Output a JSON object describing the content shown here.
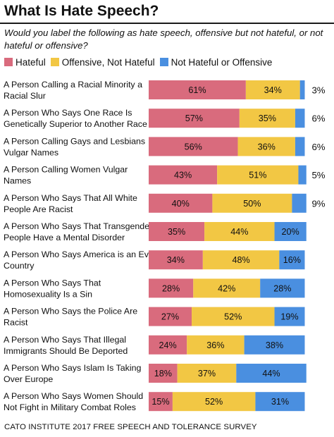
{
  "title": "What Is Hate Speech?",
  "subtitle": "Would you label the following as hate speech, offensive but not hateful, or not hateful or offensive?",
  "source": "CATO INSTITUTE 2017 FREE SPEECH AND TOLERANCE SURVEY",
  "colors": {
    "hateful": "#d96b7d",
    "offensive": "#f2c744",
    "not": "#4a8fe0"
  },
  "chart_data": {
    "type": "bar",
    "orientation": "horizontal",
    "stacked": true,
    "legend": "top-left",
    "grid": false,
    "xlim": [
      0,
      100
    ],
    "categories": [
      [
        "A Person Calling a Racial Minority a",
        "Racial Slur"
      ],
      [
        "A Person Who Says One Race Is",
        "Genetically Superior to Another Race"
      ],
      [
        "A Person Calling Gays and Lesbians",
        "Vulgar Names"
      ],
      [
        "A Person Calling Women Vulgar",
        "Names"
      ],
      [
        "A Person Who Says That All White",
        "People Are Racist"
      ],
      [
        "A Person Who Says That Transgender",
        "People Have a Mental Disorder"
      ],
      [
        "A Person Who Says America is an Evil",
        "Country"
      ],
      [
        "A Person Who Says That",
        "Homosexuality Is a Sin"
      ],
      [
        "A Person Who Says the Police Are",
        "Racist"
      ],
      [
        "A Person Who Says That Illegal",
        "Immigrants Should Be Deported"
      ],
      [
        "A Person Who Says Islam Is Taking",
        "Over Europe"
      ],
      [
        "A Person Who Says Women Should",
        "Not Fight in Military Combat Roles"
      ]
    ],
    "series": [
      {
        "name": "Hateful",
        "values": [
          61,
          57,
          56,
          43,
          40,
          35,
          34,
          28,
          27,
          24,
          18,
          15
        ]
      },
      {
        "name": "Offensive, Not Hateful",
        "values": [
          34,
          35,
          36,
          51,
          50,
          44,
          48,
          42,
          52,
          36,
          37,
          52
        ]
      },
      {
        "name": "Not Hateful or Offensive",
        "values": [
          3,
          6,
          6,
          5,
          9,
          20,
          16,
          28,
          19,
          38,
          44,
          31
        ]
      }
    ]
  }
}
